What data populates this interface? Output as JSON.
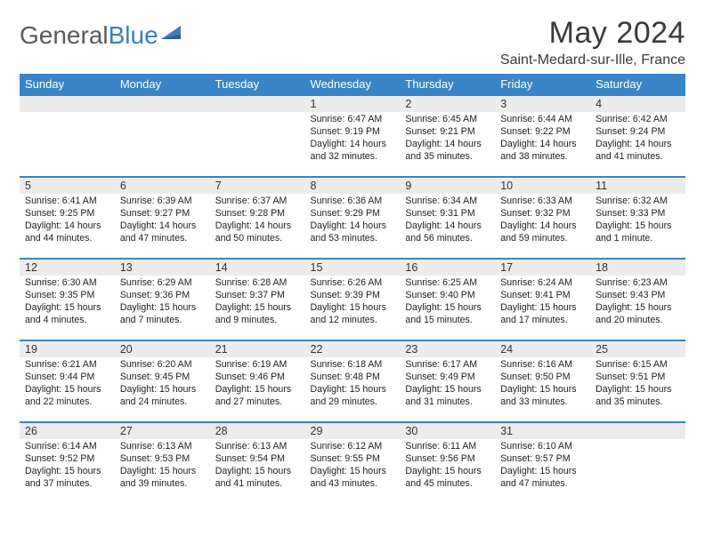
{
  "brand": {
    "part1": "General",
    "part2": "Blue"
  },
  "header": {
    "title": "May 2024",
    "location": "Saint-Medard-sur-Ille, France"
  },
  "style": {
    "header_bg": "#3a85c7",
    "daynum_bg": "#ececec",
    "row_border": "#3a85c7",
    "text_color": "#222222",
    "title_color": "#3a3a3a",
    "background": "#ffffff",
    "title_fontsize": 34,
    "location_fontsize": 16,
    "header_fontsize": 13,
    "cell_fontsize": 10.6
  },
  "weekdays": [
    "Sunday",
    "Monday",
    "Tuesday",
    "Wednesday",
    "Thursday",
    "Friday",
    "Saturday"
  ],
  "weeks": [
    [
      null,
      null,
      null,
      {
        "d": "1",
        "sr": "6:47 AM",
        "ss": "9:19 PM",
        "dl": "14 hours and 32 minutes."
      },
      {
        "d": "2",
        "sr": "6:45 AM",
        "ss": "9:21 PM",
        "dl": "14 hours and 35 minutes."
      },
      {
        "d": "3",
        "sr": "6:44 AM",
        "ss": "9:22 PM",
        "dl": "14 hours and 38 minutes."
      },
      {
        "d": "4",
        "sr": "6:42 AM",
        "ss": "9:24 PM",
        "dl": "14 hours and 41 minutes."
      }
    ],
    [
      {
        "d": "5",
        "sr": "6:41 AM",
        "ss": "9:25 PM",
        "dl": "14 hours and 44 minutes."
      },
      {
        "d": "6",
        "sr": "6:39 AM",
        "ss": "9:27 PM",
        "dl": "14 hours and 47 minutes."
      },
      {
        "d": "7",
        "sr": "6:37 AM",
        "ss": "9:28 PM",
        "dl": "14 hours and 50 minutes."
      },
      {
        "d": "8",
        "sr": "6:36 AM",
        "ss": "9:29 PM",
        "dl": "14 hours and 53 minutes."
      },
      {
        "d": "9",
        "sr": "6:34 AM",
        "ss": "9:31 PM",
        "dl": "14 hours and 56 minutes."
      },
      {
        "d": "10",
        "sr": "6:33 AM",
        "ss": "9:32 PM",
        "dl": "14 hours and 59 minutes."
      },
      {
        "d": "11",
        "sr": "6:32 AM",
        "ss": "9:33 PM",
        "dl": "15 hours and 1 minute."
      }
    ],
    [
      {
        "d": "12",
        "sr": "6:30 AM",
        "ss": "9:35 PM",
        "dl": "15 hours and 4 minutes."
      },
      {
        "d": "13",
        "sr": "6:29 AM",
        "ss": "9:36 PM",
        "dl": "15 hours and 7 minutes."
      },
      {
        "d": "14",
        "sr": "6:28 AM",
        "ss": "9:37 PM",
        "dl": "15 hours and 9 minutes."
      },
      {
        "d": "15",
        "sr": "6:26 AM",
        "ss": "9:39 PM",
        "dl": "15 hours and 12 minutes."
      },
      {
        "d": "16",
        "sr": "6:25 AM",
        "ss": "9:40 PM",
        "dl": "15 hours and 15 minutes."
      },
      {
        "d": "17",
        "sr": "6:24 AM",
        "ss": "9:41 PM",
        "dl": "15 hours and 17 minutes."
      },
      {
        "d": "18",
        "sr": "6:23 AM",
        "ss": "9:43 PM",
        "dl": "15 hours and 20 minutes."
      }
    ],
    [
      {
        "d": "19",
        "sr": "6:21 AM",
        "ss": "9:44 PM",
        "dl": "15 hours and 22 minutes."
      },
      {
        "d": "20",
        "sr": "6:20 AM",
        "ss": "9:45 PM",
        "dl": "15 hours and 24 minutes."
      },
      {
        "d": "21",
        "sr": "6:19 AM",
        "ss": "9:46 PM",
        "dl": "15 hours and 27 minutes."
      },
      {
        "d": "22",
        "sr": "6:18 AM",
        "ss": "9:48 PM",
        "dl": "15 hours and 29 minutes."
      },
      {
        "d": "23",
        "sr": "6:17 AM",
        "ss": "9:49 PM",
        "dl": "15 hours and 31 minutes."
      },
      {
        "d": "24",
        "sr": "6:16 AM",
        "ss": "9:50 PM",
        "dl": "15 hours and 33 minutes."
      },
      {
        "d": "25",
        "sr": "6:15 AM",
        "ss": "9:51 PM",
        "dl": "15 hours and 35 minutes."
      }
    ],
    [
      {
        "d": "26",
        "sr": "6:14 AM",
        "ss": "9:52 PM",
        "dl": "15 hours and 37 minutes."
      },
      {
        "d": "27",
        "sr": "6:13 AM",
        "ss": "9:53 PM",
        "dl": "15 hours and 39 minutes."
      },
      {
        "d": "28",
        "sr": "6:13 AM",
        "ss": "9:54 PM",
        "dl": "15 hours and 41 minutes."
      },
      {
        "d": "29",
        "sr": "6:12 AM",
        "ss": "9:55 PM",
        "dl": "15 hours and 43 minutes."
      },
      {
        "d": "30",
        "sr": "6:11 AM",
        "ss": "9:56 PM",
        "dl": "15 hours and 45 minutes."
      },
      {
        "d": "31",
        "sr": "6:10 AM",
        "ss": "9:57 PM",
        "dl": "15 hours and 47 minutes."
      },
      null
    ]
  ],
  "labels": {
    "sunrise": "Sunrise: ",
    "sunset": "Sunset: ",
    "daylight": "Daylight: "
  }
}
